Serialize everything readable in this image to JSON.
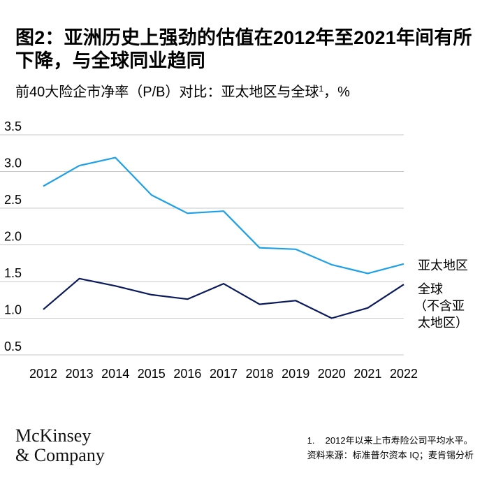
{
  "header": {
    "title": "图2：亚洲历史上强劲的估值在2012年至2021年间有所下降，与全球同业趋同",
    "subtitle": "前40大险企市净率（P/B）对比：亚太地区与全球",
    "subtitle_sup": "1",
    "subtitle_suffix": "，%"
  },
  "colors": {
    "asia": "#1ea0e6",
    "global": "#0a1a5c",
    "grid": "#c8c8c8"
  },
  "chart_data": {
    "type": "line",
    "title": "前40大险企市净率（P/B）对比：亚太地区与全球",
    "x": [
      "2012",
      "2013",
      "2014",
      "2015",
      "2016",
      "2017",
      "2018",
      "2019",
      "2020",
      "2021",
      "2022"
    ],
    "ylim": [
      0.5,
      3.5
    ],
    "yticks": [
      "0.5",
      "1.0",
      "1.5",
      "2.0",
      "2.5",
      "3.0",
      "3.5"
    ],
    "ytick_values": [
      0.5,
      1.0,
      1.5,
      2.0,
      2.5,
      3.0,
      3.5
    ],
    "grid": true,
    "series": [
      {
        "name": "亚太地区",
        "values": [
          2.8,
          3.08,
          3.19,
          2.68,
          2.43,
          2.46,
          1.96,
          1.94,
          1.73,
          1.61,
          1.74
        ]
      },
      {
        "name": "全球（不含亚太地区）",
        "name_lines": [
          "全球",
          "（不含亚",
          "太地区）"
        ],
        "values": [
          1.12,
          1.54,
          1.44,
          1.32,
          1.26,
          1.47,
          1.19,
          1.24,
          1.0,
          1.14,
          1.46
        ]
      }
    ]
  },
  "footer": {
    "logo_line1": "McKinsey",
    "logo_line2": "& Company",
    "note_num": "1.",
    "note_text": "2012年以来上市寿险公司平均水平。",
    "source": "资料来源：标准普尔资本 IQ；麦肯锡分析"
  }
}
